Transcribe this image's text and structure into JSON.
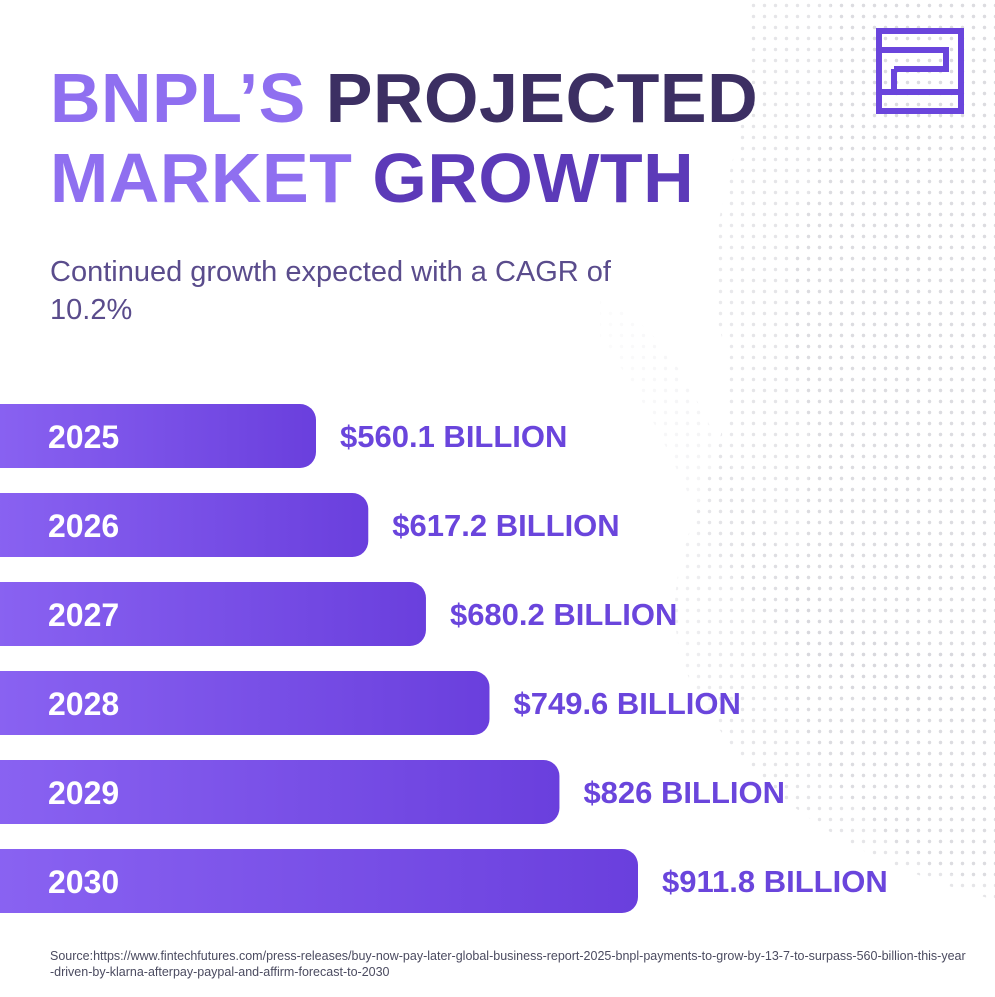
{
  "title": {
    "line1_part1": "BNPL’S ",
    "line1_part2": "PROJECTED",
    "line2_part1": "MARKET ",
    "line2_part2": "GROWTH"
  },
  "subtitle": "Continued growth expected with a CAGR of 10.2%",
  "source": "Source:https://www.fintechfutures.com/press-releases/buy-now-pay-later-global-business-report-2025-bnpl-payments-to-grow-by-13-7-to-surpass-560-billion-this-year-driven-by-klarna-afterpay-paypal-and-affirm-forecast-to-2030",
  "logo_icon": "brand-logo-icon",
  "colors": {
    "bar_start": "#8a63f2",
    "bar_end": "#6a3fdd",
    "value_text": "#6a45dc",
    "title_light": "#8f6ff0",
    "title_dark": "#3c2f63"
  },
  "chart_data": {
    "type": "bar",
    "orientation": "horizontal",
    "categories": [
      "2025",
      "2026",
      "2027",
      "2028",
      "2029",
      "2030"
    ],
    "values": [
      560.1,
      617.2,
      680.2,
      749.6,
      826,
      911.8
    ],
    "value_labels": [
      "$560.1 BILLION",
      "$617.2 BILLION",
      "$680.2 BILLION",
      "$749.6 BILLION",
      "$826 BILLION",
      "$911.8 BILLION"
    ],
    "title": "BNPL’S PROJECTED MARKET GROWTH",
    "xlabel": "",
    "ylabel": "",
    "grid": false,
    "legend": "none"
  }
}
